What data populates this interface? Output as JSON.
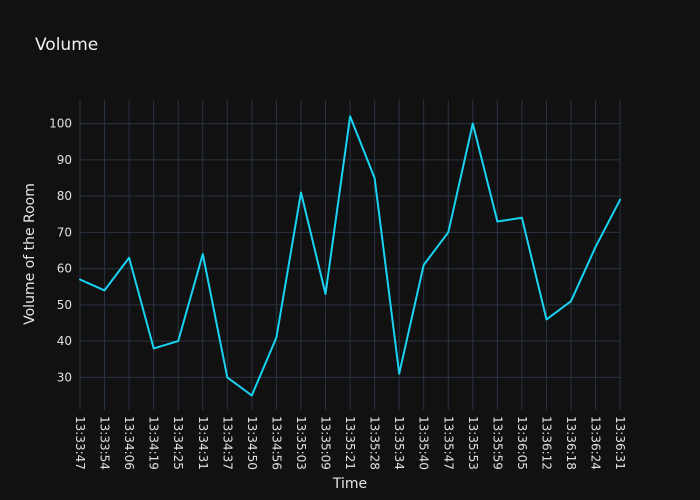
{
  "chart_data": {
    "type": "line",
    "title": "Volume",
    "xlabel": "Time",
    "ylabel": "Volume of the Room",
    "x": [
      "13:33:47",
      "13:33:54",
      "13:34:06",
      "13:34:19",
      "13:34:25",
      "13:34:31",
      "13:34:37",
      "13:34:50",
      "13:34:56",
      "13:35:03",
      "13:35:09",
      "13:35:21",
      "13:35:28",
      "13:35:34",
      "13:35:40",
      "13:35:47",
      "13:35:53",
      "13:35:59",
      "13:36:05",
      "13:36:12",
      "13:36:18",
      "13:36:24",
      "13:36:31"
    ],
    "tick_labels": [
      "13:33:47",
      "13:33:54",
      "13:34:06",
      "13:34:19",
      "13:34:25",
      "13:34:31",
      "13:34:37",
      "13:34:50",
      "13:34:56",
      "13:35:03",
      "13:35:09",
      "13:35:21",
      "13:35:28",
      "13:35:34",
      "13:35:40",
      "13:35:47",
      "13:35:53",
      "13:35:59",
      "13:36:05",
      "13:36:12",
      "13:36:18",
      "13:36:24",
      "13:36:31"
    ],
    "series": [
      {
        "values": [
          57,
          54,
          63,
          38,
          40,
          64,
          30,
          25,
          41,
          81,
          53,
          102,
          85,
          31,
          61,
          70,
          100,
          73,
          74,
          46,
          51,
          66,
          79
        ]
      }
    ],
    "yticks": [
      30,
      40,
      50,
      60,
      70,
      80,
      90,
      100
    ],
    "ylim": [
      21,
      106.5
    ],
    "grid": true,
    "colors": {
      "background": "#111111",
      "line": "#19d3f3",
      "grid": "#283442"
    }
  }
}
